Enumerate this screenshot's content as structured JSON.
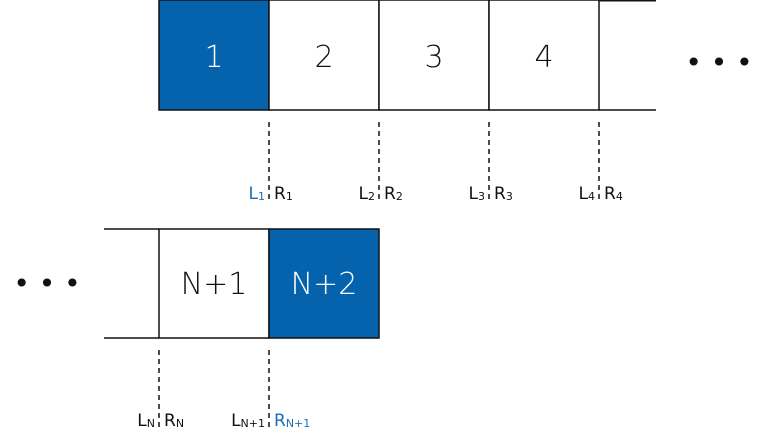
{
  "colors": {
    "highlight": "#0563ad",
    "ink": "#111111",
    "highlight_text": "#1a6fba",
    "white": "#ffffff"
  },
  "top_row": {
    "cells": [
      {
        "label": "1",
        "highlighted": true
      },
      {
        "label": "2",
        "highlighted": false
      },
      {
        "label": "3",
        "highlighted": false
      },
      {
        "label": "4",
        "highlighted": false
      }
    ],
    "continuation": "• • •"
  },
  "top_boundaries": [
    {
      "L": "L",
      "L_sub": "1",
      "R": "R",
      "R_sub": "1",
      "L_highlighted": true,
      "R_highlighted": false
    },
    {
      "L": "L",
      "L_sub": "2",
      "R": "R",
      "R_sub": "2",
      "L_highlighted": false,
      "R_highlighted": false
    },
    {
      "L": "L",
      "L_sub": "3",
      "R": "R",
      "R_sub": "3",
      "L_highlighted": false,
      "R_highlighted": false
    },
    {
      "L": "L",
      "L_sub": "4",
      "R": "R",
      "R_sub": "4",
      "L_highlighted": false,
      "R_highlighted": false
    }
  ],
  "bottom_row": {
    "continuation": "• • •",
    "cells": [
      {
        "label": "N+1",
        "highlighted": false
      },
      {
        "label": "N+2",
        "highlighted": true
      }
    ]
  },
  "bottom_boundaries": [
    {
      "L": "L",
      "L_sub": "N",
      "R": "R",
      "R_sub": "N",
      "L_highlighted": false,
      "R_highlighted": false
    },
    {
      "L": "L",
      "L_sub": "N+1",
      "R": "R",
      "R_sub": "N+1",
      "L_highlighted": false,
      "R_highlighted": true
    }
  ]
}
